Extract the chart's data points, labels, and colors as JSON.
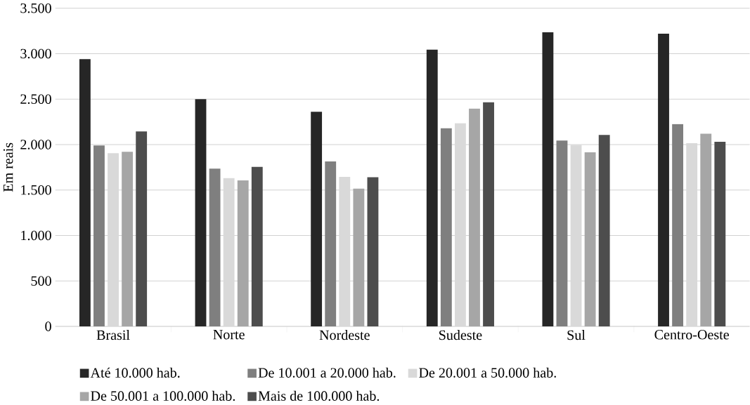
{
  "chart_data": {
    "type": "bar",
    "ylabel": "Em reais",
    "categories": [
      "Brasil",
      "Norte",
      "Nordeste",
      "Sudeste",
      "Sul",
      "Centro-Oeste"
    ],
    "series": [
      {
        "name": "Até 10.000 hab.",
        "color": "#262626",
        "values": [
          2940,
          2500,
          2360,
          3045,
          3235,
          3220
        ]
      },
      {
        "name": "De 10.001 a 20.000 hab.",
        "color": "#7f7f7f",
        "values": [
          1990,
          1735,
          1815,
          2180,
          2045,
          2225
        ]
      },
      {
        "name": "De 20.001 a 50.000 hab.",
        "color": "#d9d9d9",
        "values": [
          1905,
          1630,
          1645,
          2235,
          1995,
          2015
        ]
      },
      {
        "name": "De 50.001 a 100.000 hab.",
        "color": "#a6a6a6",
        "values": [
          1920,
          1605,
          1515,
          2395,
          1915,
          2120
        ]
      },
      {
        "name": "Mais de 100.000 hab.",
        "color": "#4d4d4d",
        "values": [
          2145,
          1755,
          1640,
          2465,
          2105,
          2030
        ]
      }
    ],
    "ylim": [
      0,
      3500
    ],
    "yticks": [
      {
        "value": 0,
        "label": "0"
      },
      {
        "value": 500,
        "label": "500"
      },
      {
        "value": 1000,
        "label": "1.000"
      },
      {
        "value": 1500,
        "label": "1.500"
      },
      {
        "value": 2000,
        "label": "2.000"
      },
      {
        "value": 2500,
        "label": "2.500"
      },
      {
        "value": 3000,
        "label": "3.000"
      },
      {
        "value": 3500,
        "label": "3.500"
      }
    ],
    "grid": "y",
    "legend": "bottom"
  }
}
